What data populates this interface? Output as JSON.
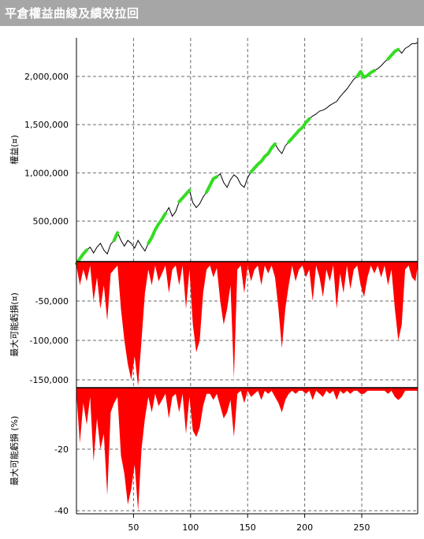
{
  "window": {
    "title": "平倉權益曲線及績效拉回"
  },
  "chart_data": [
    {
      "type": "line",
      "ylabel": "權益(¤)",
      "ylim": [
        80000,
        2400000
      ],
      "yticks": [
        500000,
        1000000,
        1500000,
        2000000
      ],
      "ytick_labels": [
        "500,000",
        "1,000,000",
        "1,500,000",
        "2,000,000"
      ],
      "grid": true,
      "line_color": "#000000",
      "highlight_color": "#33dd22",
      "x": [
        0,
        3,
        6,
        9,
        12,
        15,
        18,
        21,
        24,
        27,
        30,
        33,
        36,
        39,
        42,
        45,
        48,
        51,
        54,
        57,
        60,
        63,
        66,
        69,
        72,
        75,
        78,
        81,
        84,
        87,
        90,
        93,
        96,
        99,
        102,
        105,
        108,
        111,
        114,
        117,
        120,
        123,
        126,
        129,
        132,
        135,
        138,
        141,
        144,
        147,
        150,
        153,
        156,
        159,
        162,
        165,
        168,
        171,
        174,
        177,
        180,
        183,
        186,
        189,
        192,
        195,
        198,
        201,
        204,
        207,
        210,
        213,
        216,
        219,
        222,
        225,
        228,
        231,
        234,
        237,
        240,
        243,
        246,
        249,
        252,
        255,
        258,
        261,
        264,
        267,
        270,
        273,
        276,
        279,
        282,
        285,
        288,
        291,
        294,
        297,
        299
      ],
      "values": [
        60000,
        110000,
        160000,
        200000,
        230000,
        170000,
        230000,
        270000,
        200000,
        160000,
        260000,
        300000,
        380000,
        300000,
        240000,
        300000,
        270000,
        220000,
        300000,
        240000,
        190000,
        270000,
        330000,
        410000,
        470000,
        520000,
        580000,
        640000,
        550000,
        600000,
        700000,
        740000,
        780000,
        820000,
        690000,
        640000,
        680000,
        750000,
        800000,
        870000,
        940000,
        960000,
        990000,
        900000,
        850000,
        930000,
        980000,
        950000,
        880000,
        850000,
        950000,
        1010000,
        1050000,
        1090000,
        1120000,
        1170000,
        1200000,
        1260000,
        1300000,
        1240000,
        1200000,
        1280000,
        1320000,
        1360000,
        1400000,
        1440000,
        1470000,
        1520000,
        1560000,
        1590000,
        1610000,
        1640000,
        1650000,
        1670000,
        1700000,
        1720000,
        1740000,
        1790000,
        1830000,
        1870000,
        1920000,
        1970000,
        2000000,
        2050000,
        1990000,
        2010000,
        2040000,
        2060000,
        2080000,
        2110000,
        2150000,
        2180000,
        2220000,
        2260000,
        2280000,
        2240000,
        2290000,
        2310000,
        2340000,
        2340000,
        2350000
      ],
      "highlight_segments": [
        [
          0,
          3
        ],
        [
          11,
          12
        ],
        [
          21,
          26
        ],
        [
          30,
          33
        ],
        [
          38,
          41
        ],
        [
          51,
          58
        ],
        [
          62,
          68
        ],
        [
          82,
          87
        ],
        [
          91,
          94
        ],
        [
          101,
          104
        ]
      ]
    },
    {
      "type": "area",
      "ylabel": "最大可能虧損(¤)",
      "ylim": [
        -160000,
        0
      ],
      "yticks": [
        -50000,
        -100000,
        -150000
      ],
      "ytick_labels": [
        "-50,000",
        "-100,000",
        "-150,000"
      ],
      "grid": true,
      "fill_color": "#ff0000",
      "x": [
        0,
        3,
        6,
        9,
        12,
        15,
        18,
        21,
        24,
        27,
        30,
        33,
        36,
        39,
        42,
        45,
        48,
        51,
        54,
        57,
        60,
        63,
        66,
        69,
        72,
        75,
        78,
        81,
        84,
        87,
        90,
        93,
        96,
        99,
        102,
        105,
        108,
        111,
        114,
        117,
        120,
        123,
        126,
        129,
        132,
        135,
        138,
        141,
        144,
        147,
        150,
        153,
        156,
        159,
        162,
        165,
        168,
        171,
        174,
        177,
        180,
        183,
        186,
        189,
        192,
        195,
        198,
        201,
        204,
        207,
        210,
        213,
        216,
        219,
        222,
        225,
        228,
        231,
        234,
        237,
        240,
        243,
        246,
        249,
        252,
        255,
        258,
        261,
        264,
        267,
        270,
        273,
        276,
        279,
        282,
        285,
        288,
        291,
        294,
        297,
        299
      ],
      "values": [
        -5000,
        -30000,
        -10000,
        -25000,
        -5000,
        -50000,
        -20000,
        -60000,
        -30000,
        -75000,
        -15000,
        -10000,
        -5000,
        -60000,
        -100000,
        -130000,
        -150000,
        -120000,
        -158000,
        -100000,
        -40000,
        -10000,
        -30000,
        -5000,
        -25000,
        -15000,
        -5000,
        -40000,
        -10000,
        -5000,
        -30000,
        -5000,
        -60000,
        -10000,
        -80000,
        -115000,
        -100000,
        -40000,
        -10000,
        -5000,
        -20000,
        -8000,
        -50000,
        -80000,
        -60000,
        -30000,
        -148000,
        -10000,
        -5000,
        -40000,
        -5000,
        -25000,
        -10000,
        -5000,
        -30000,
        -5000,
        -15000,
        -5000,
        -20000,
        -60000,
        -110000,
        -60000,
        -30000,
        -5000,
        -25000,
        -10000,
        -5000,
        -20000,
        -10000,
        -50000,
        -5000,
        -20000,
        -45000,
        -10000,
        -25000,
        -5000,
        -60000,
        -15000,
        -40000,
        -5000,
        -35000,
        -10000,
        -5000,
        -30000,
        -45000,
        -20000,
        -5000,
        -15000,
        -5000,
        -20000,
        -5000,
        -30000,
        -10000,
        -60000,
        -100000,
        -80000,
        -10000,
        -5000,
        -20000,
        -25000,
        -5000
      ]
    },
    {
      "type": "area",
      "ylabel": "最大可能虧損 (%)",
      "ylim": [
        -41,
        0
      ],
      "yticks": [
        -20,
        -40
      ],
      "ytick_labels": [
        "-20",
        "-40"
      ],
      "xlim": [
        0,
        299
      ],
      "xticks": [
        50,
        100,
        150,
        200,
        250
      ],
      "xtick_labels": [
        "50",
        "100",
        "150",
        "200",
        "250"
      ],
      "grid": true,
      "fill_color": "#ff0000",
      "x": [
        0,
        3,
        6,
        9,
        12,
        15,
        18,
        21,
        24,
        27,
        30,
        33,
        36,
        39,
        42,
        45,
        48,
        51,
        54,
        57,
        60,
        63,
        66,
        69,
        72,
        75,
        78,
        81,
        84,
        87,
        90,
        93,
        96,
        99,
        102,
        105,
        108,
        111,
        114,
        117,
        120,
        123,
        126,
        129,
        132,
        135,
        138,
        141,
        144,
        147,
        150,
        153,
        156,
        159,
        162,
        165,
        168,
        171,
        174,
        177,
        180,
        183,
        186,
        189,
        192,
        195,
        198,
        201,
        204,
        207,
        210,
        213,
        216,
        219,
        222,
        225,
        228,
        231,
        234,
        237,
        240,
        243,
        246,
        249,
        252,
        255,
        258,
        261,
        264,
        267,
        270,
        273,
        276,
        279,
        282,
        285,
        288,
        291,
        294,
        297,
        299
      ],
      "values": [
        -2,
        -18,
        -5,
        -12,
        -3,
        -24,
        -10,
        -20,
        -15,
        -35,
        -8,
        -5,
        -3,
        -22,
        -28,
        -38,
        -33,
        -25,
        -40,
        -20,
        -10,
        -3,
        -8,
        -2,
        -6,
        -4,
        -2,
        -10,
        -3,
        -2,
        -8,
        -2,
        -15,
        -3,
        -14,
        -16,
        -13,
        -6,
        -2,
        -2,
        -4,
        -2,
        -6,
        -10,
        -8,
        -4,
        -16,
        -2,
        -1,
        -5,
        -1,
        -3,
        -2,
        -1,
        -4,
        -1,
        -2,
        -1,
        -3,
        -5,
        -8,
        -4,
        -2,
        -1,
        -2,
        -1,
        -1,
        -2,
        -1,
        -4,
        -1,
        -2,
        -3,
        -1,
        -2,
        -1,
        -4,
        -1,
        -2,
        -1,
        -2,
        -1,
        -1,
        -2,
        -2,
        -1,
        -1,
        -1,
        -1,
        -1,
        -1,
        -2,
        -1,
        -3,
        -4,
        -3,
        -1,
        -1,
        -1,
        -1,
        -1
      ]
    }
  ]
}
